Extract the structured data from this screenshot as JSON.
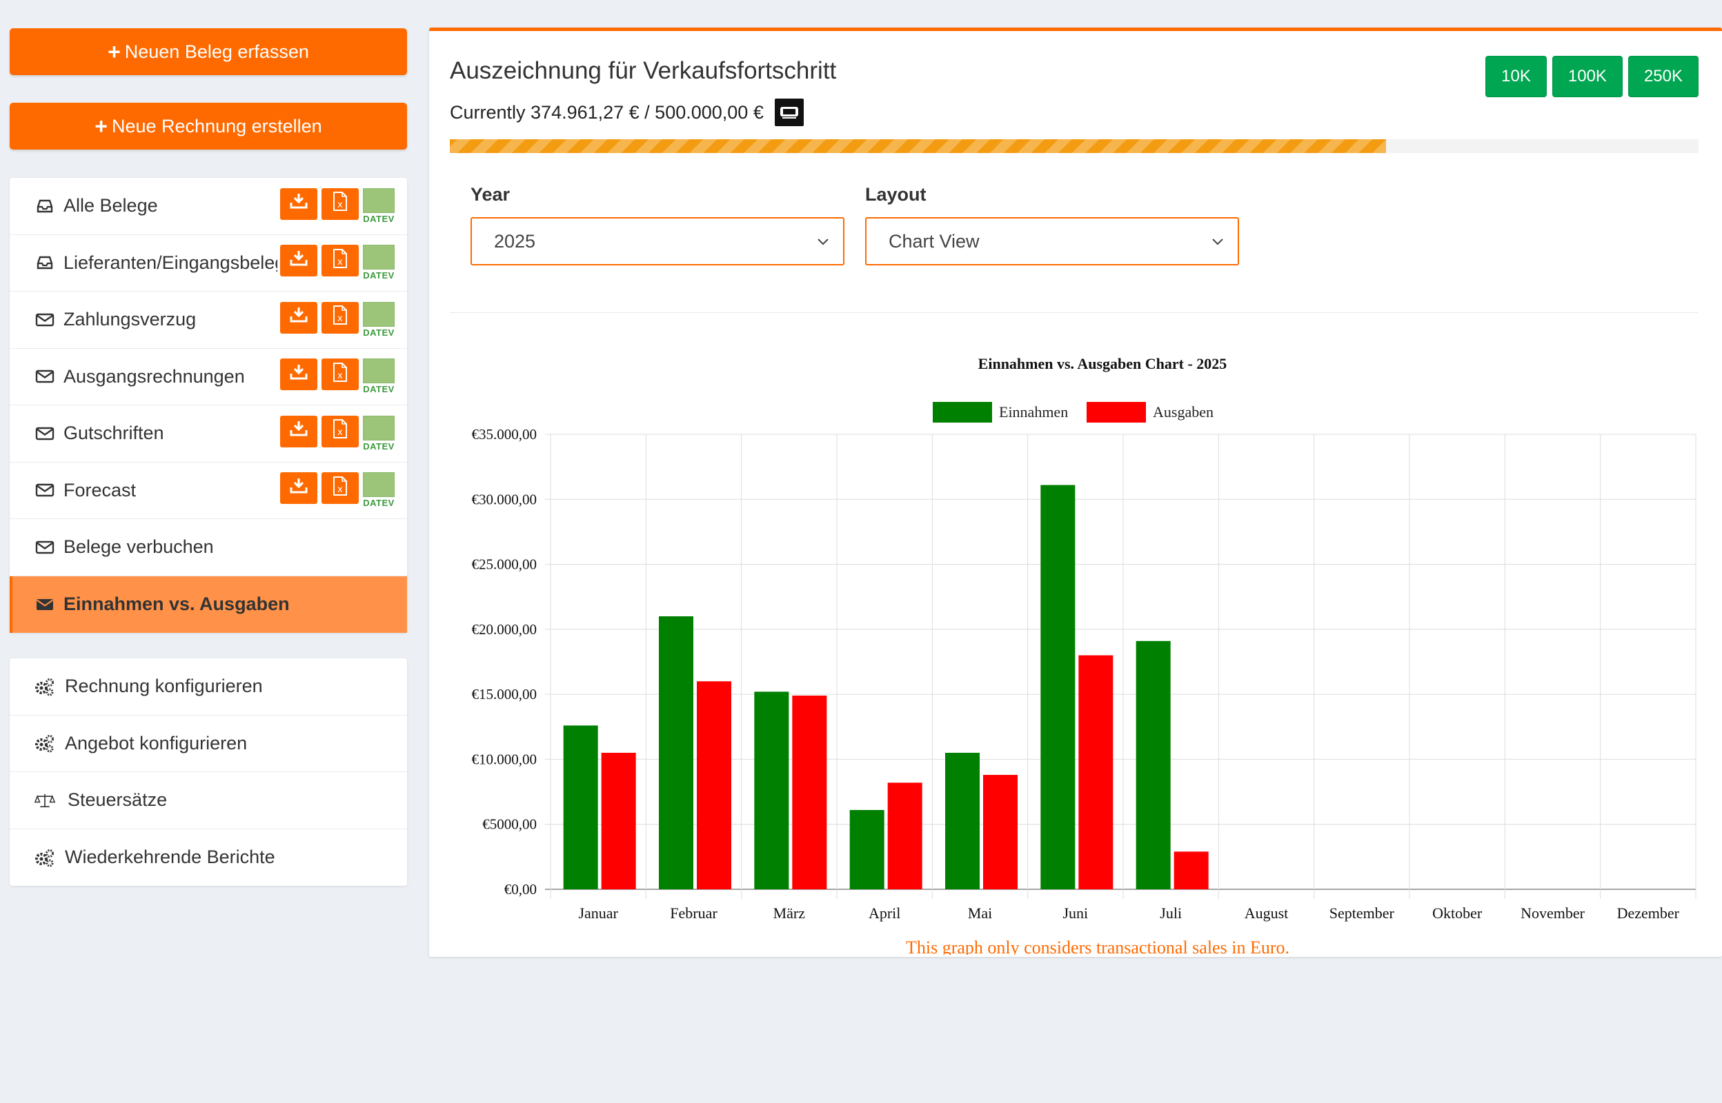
{
  "sidebar": {
    "new_receipt": "Neuen Beleg erfassen",
    "new_invoice": "Neue Rechnung erstellen",
    "items": [
      {
        "label": "Alle Belege",
        "icon": "inbox-icon",
        "actions": true
      },
      {
        "label": "Lieferanten/Eingangsbelege",
        "icon": "inbox-icon",
        "actions": true
      },
      {
        "label": "Zahlungsverzug",
        "icon": "envelope-icon",
        "actions": true
      },
      {
        "label": "Ausgangsrechnungen",
        "icon": "envelope-icon",
        "actions": true
      },
      {
        "label": "Gutschriften",
        "icon": "envelope-icon",
        "actions": true
      },
      {
        "label": "Forecast",
        "icon": "envelope-icon",
        "actions": true
      },
      {
        "label": "Belege verbuchen",
        "icon": "envelope-icon",
        "actions": false
      },
      {
        "label": "Einnahmen vs. Ausgaben",
        "icon": "envelope-icon",
        "actions": false,
        "active": true
      }
    ],
    "config_items": [
      {
        "label": "Rechnung konfigurieren",
        "icon": "gears-icon"
      },
      {
        "label": "Angebot konfigurieren",
        "icon": "gears-icon"
      },
      {
        "label": "Steuersätze",
        "icon": "balance-scale-icon"
      },
      {
        "label": "Wiederkehrende Berichte",
        "icon": "gears-icon"
      }
    ],
    "datev_label": "DATEV"
  },
  "main": {
    "title": "Auszeichnung für Verkaufsfortschritt",
    "subtitle": "Currently 374.961,27 € / 500.000,00 €",
    "goal_buttons": [
      "10K",
      "100K",
      "250K"
    ],
    "progress": 0.7499,
    "year_label": "Year",
    "year_value": "2025",
    "layout_label": "Layout",
    "layout_value": "Chart View"
  },
  "colors": {
    "accent": "#ff6a00",
    "income": "#008000",
    "expense": "#ff0000",
    "goal": "#00a651"
  },
  "chart_data": {
    "type": "bar",
    "title": "Einnahmen vs. Ausgaben Chart - 2025",
    "categories": [
      "Januar",
      "Februar",
      "März",
      "April",
      "Mai",
      "Juni",
      "Juli",
      "August",
      "September",
      "Oktober",
      "November",
      "Dezember"
    ],
    "series": [
      {
        "name": "Einnahmen",
        "color": "#008000",
        "values": [
          12600,
          21000,
          15200,
          6100,
          10500,
          31100,
          19100,
          0,
          0,
          0,
          0,
          0
        ]
      },
      {
        "name": "Ausgaben",
        "color": "#ff0000",
        "values": [
          10500,
          16000,
          14900,
          8200,
          8800,
          18000,
          2900,
          0,
          0,
          0,
          0,
          0
        ]
      }
    ],
    "ylim": [
      0,
      35000
    ],
    "yticks": [
      0,
      5000,
      10000,
      15000,
      20000,
      25000,
      30000,
      35000
    ],
    "ytick_labels": [
      "€0,00",
      "€5000,00",
      "€10.000,00",
      "€15.000,00",
      "€20.000,00",
      "€25.000,00",
      "€30.000,00",
      "€35.000,00"
    ],
    "legend_position": "top-center",
    "grid": true,
    "footnote": "This graph only considers transactional sales in Euro."
  }
}
